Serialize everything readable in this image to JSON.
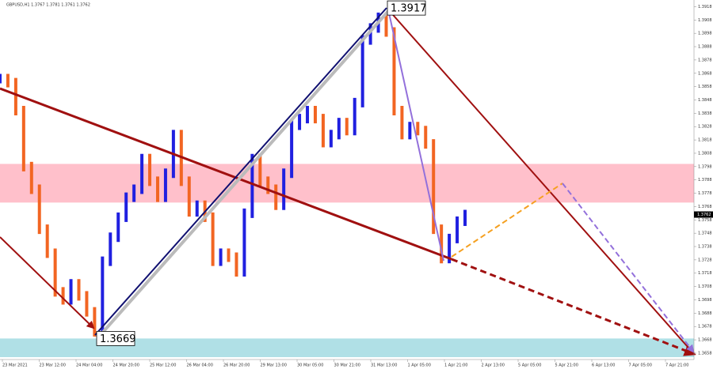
{
  "chart_data": {
    "type": "line",
    "header": "GBPUSD,H1  1.3767 1.3781 1.3761 1.3762",
    "values": [
      1.3864,
      1.3861,
      1.384,
      1.3798,
      1.3781,
      1.3751,
      1.3733,
      1.3704,
      1.3698,
      1.371,
      1.3701,
      1.3689,
      1.3674,
      1.3727,
      1.3745,
      1.376,
      1.3775,
      1.3781,
      1.3804,
      1.3787,
      1.3775,
      1.3793,
      1.3822,
      1.3787,
      1.3764,
      1.3769,
      1.376,
      1.3727,
      1.3733,
      1.373,
      1.3719,
      1.3763,
      1.3804,
      1.3787,
      1.3781,
      1.3769,
      1.3793,
      1.3829,
      1.3834,
      1.384,
      1.3834,
      1.3816,
      1.3822,
      1.3831,
      1.3825,
      1.3846,
      1.3893,
      1.3902,
      1.391,
      1.3899,
      1.384,
      1.3822,
      1.3828,
      1.3825,
      1.3815,
      1.3751,
      1.3729,
      1.3744,
      1.3757,
      1.3762
    ],
    "up_color": "#2020e0",
    "down_color": "#f26522",
    "ylim": [
      1.3655,
      1.3923
    ],
    "yticks": [
      1.3658,
      1.3668,
      1.3678,
      1.3688,
      1.3698,
      1.3708,
      1.3718,
      1.3728,
      1.3738,
      1.3748,
      1.3758,
      1.3768,
      1.3778,
      1.3788,
      1.3798,
      1.3808,
      1.3818,
      1.3828,
      1.3838,
      1.3848,
      1.3858,
      1.3868,
      1.3878,
      1.3888,
      1.3898,
      1.3908,
      1.3918
    ],
    "current_price": 1.3762,
    "x_labels": [
      "23 Mar 2021",
      "23 Mar 12:00",
      "24 Mar 04:00",
      "24 Mar 20:00",
      "25 Mar 12:00",
      "26 Mar 04:00",
      "26 Mar 20:00",
      "29 Mar 13:00",
      "30 Mar 05:00",
      "30 Mar 21:00",
      "31 Mar 13:00",
      "1 Apr 05:00",
      "1 Apr 21:00",
      "2 Apr 13:00",
      "5 Apr 05:00",
      "5 Apr 21:00",
      "6 Apr 13:00",
      "7 Apr 05:00",
      "7 Apr 21:00"
    ],
    "zones": [
      {
        "from": 1.3771,
        "to": 1.38,
        "color": "#ffc0cb"
      },
      {
        "from": 1.3655,
        "to": 1.3669,
        "color": "#b0e0e6"
      }
    ],
    "annotations": [
      {
        "label": "1.3917",
        "value": 1.3917
      },
      {
        "label": "1.3669",
        "value": 1.3669
      }
    ]
  }
}
